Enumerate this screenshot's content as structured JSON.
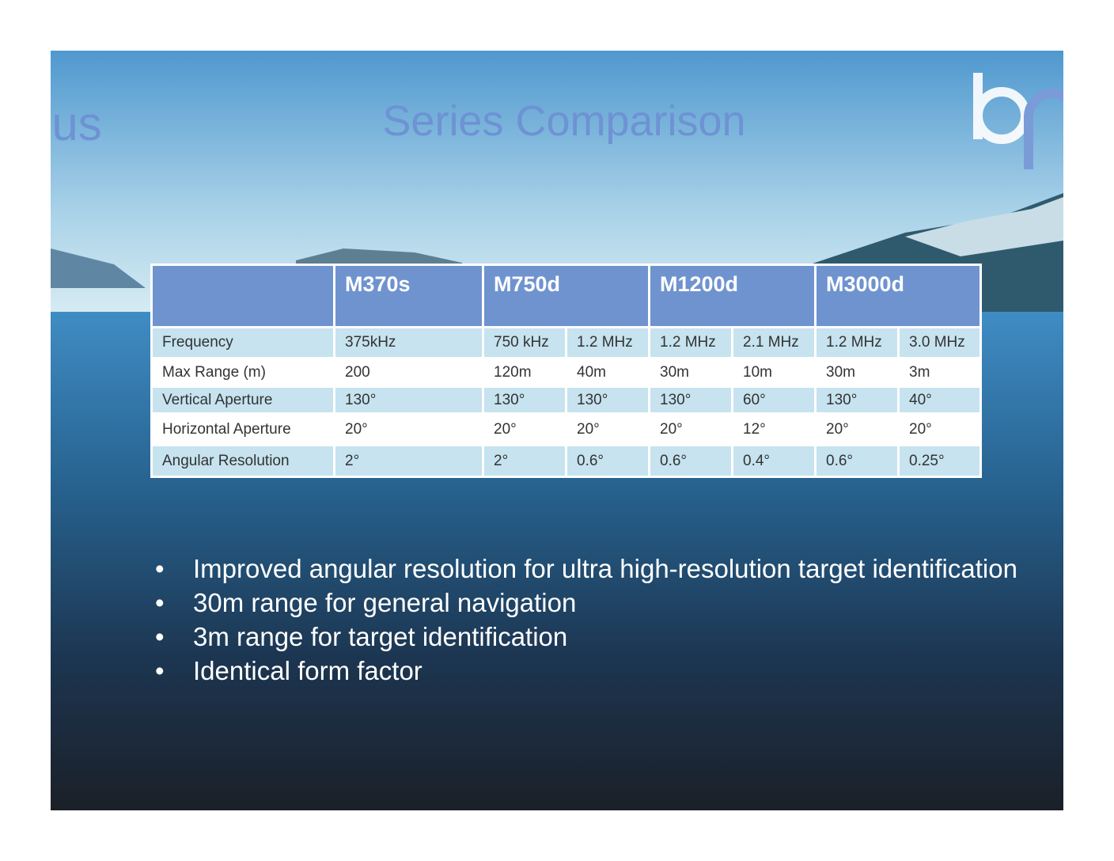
{
  "logo_text": "lus",
  "title": "Series Comparison",
  "table": {
    "header": [
      "M370s",
      "M750d",
      "M1200d",
      "M3000d"
    ],
    "rows": [
      [
        "Frequency",
        "375kHz",
        "750 kHz",
        "1.2 MHz",
        "1.2 MHz",
        "2.1 MHz",
        "1.2 MHz",
        "3.0 MHz"
      ],
      [
        "Max Range (m)",
        "200",
        "120m",
        "40m",
        "30m",
        "10m",
        "30m",
        "3m"
      ],
      [
        "Vertical Aperture",
        "130°",
        "130°",
        "130°",
        "130°",
        "60°",
        "130°",
        "40°"
      ],
      [
        "Horizontal Aperture",
        "20°",
        "20°",
        "20°",
        "20°",
        "12°",
        "20°",
        "20°"
      ],
      [
        "Angular Resolution",
        "2°",
        "2°",
        "0.6°",
        "0.6°",
        "0.4°",
        "0.6°",
        "0.25°"
      ]
    ]
  },
  "bullets": [
    "Improved angular resolution for ultra high-resolution target identification",
    "30m range for general navigation",
    "3m range for target identification",
    "Identical form factor"
  ]
}
